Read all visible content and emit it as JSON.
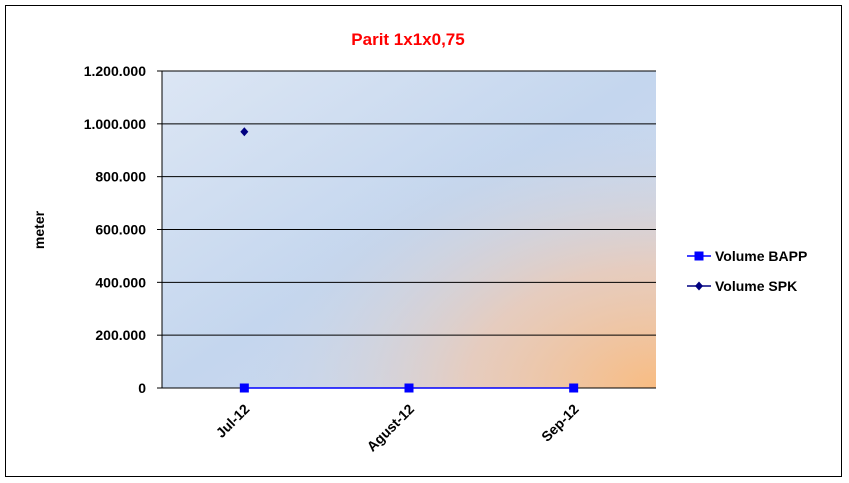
{
  "chart_data": {
    "type": "line",
    "title": "Parit 1x1x0,75",
    "xlabel": "",
    "ylabel": "meter",
    "categories": [
      "Jul-12",
      "Agust-12",
      "Sep-12"
    ],
    "yticks": [
      "0",
      "200.000",
      "400.000",
      "600.000",
      "800.000",
      "1.000.000",
      "1.200.000"
    ],
    "ylim": [
      0,
      1200000
    ],
    "grid": true,
    "legend_position": "right",
    "series": [
      {
        "name": "Volume BAPP",
        "values": [
          0,
          0,
          0
        ],
        "color": "#0000ff",
        "marker": "square"
      },
      {
        "name": "Volume SPK",
        "values": [
          970000,
          null,
          null
        ],
        "color": "#000080",
        "marker": "diamond"
      }
    ]
  }
}
